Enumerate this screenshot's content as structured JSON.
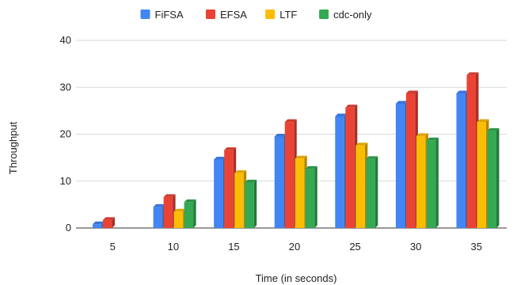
{
  "chart_data": {
    "type": "bar",
    "categories": [
      "5",
      "10",
      "15",
      "20",
      "25",
      "30",
      "35"
    ],
    "series": [
      {
        "name": "FiFSA",
        "color": "#4285f4",
        "values": [
          0.8,
          4.5,
          14.6,
          19.5,
          23.8,
          26.5,
          28.7
        ]
      },
      {
        "name": "EFSA",
        "color": "#ea4335",
        "values": [
          1.7,
          6.6,
          16.6,
          22.6,
          25.7,
          28.7,
          32.6
        ]
      },
      {
        "name": "LTF",
        "color": "#fbbc04",
        "values": [
          null,
          3.5,
          11.7,
          14.8,
          17.6,
          19.6,
          22.6
        ]
      },
      {
        "name": "cdc-only",
        "color": "#34a853",
        "values": [
          null,
          5.5,
          9.7,
          12.6,
          14.7,
          18.7,
          20.7
        ]
      }
    ],
    "xlabel": "Time (in seconds)",
    "ylabel": "Throughput",
    "ylim": [
      0,
      40
    ],
    "yticks": [
      0,
      10,
      20,
      30,
      40
    ],
    "grid": true,
    "legend_position": "top"
  }
}
